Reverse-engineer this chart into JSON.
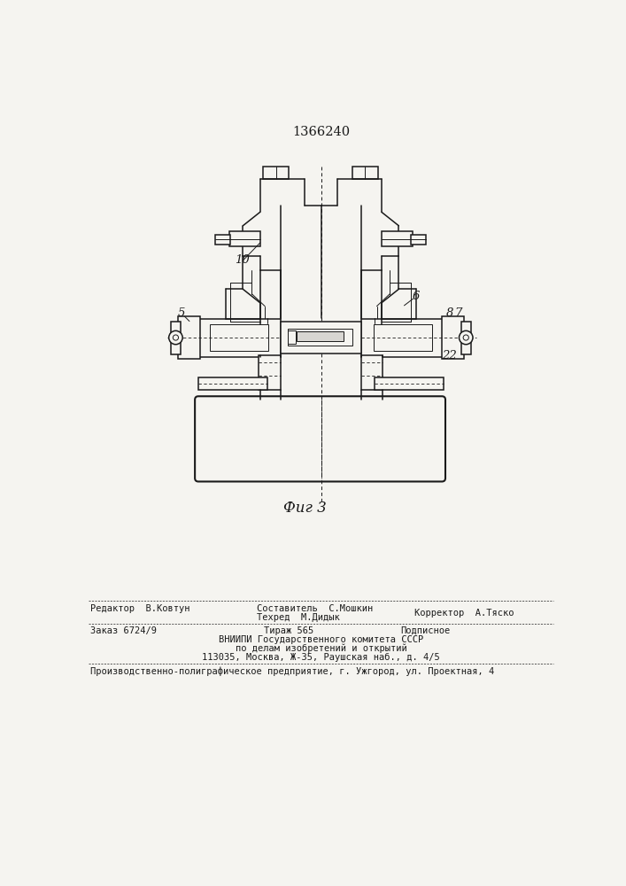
{
  "patent_number": "1366240",
  "fig_label": "Фиг 3",
  "background_color": "#f5f4f0",
  "line_color": "#1a1a1a",
  "footer": {
    "line1_left": "Редактор  В.Ковтун",
    "line1_center_top": "Составитель  С.Мошкин",
    "line1_center_bot": "Техред  М.Дидык",
    "line1_right": "Корректор  А.Тяско",
    "line2_left": "Заказ 6724/9",
    "line2_center": "Тираж 565",
    "line2_right": "Подписное",
    "line3": "ВНИИПИ Государственного комитета СССР",
    "line4": "по делам изобретений и открытий",
    "line5": "113035, Москва, Ж-35, Раушская наб., д. 4/5",
    "line6": "Производственно-полиграфическое предприятие, г. Ужгород, ул. Проектная, 4"
  }
}
